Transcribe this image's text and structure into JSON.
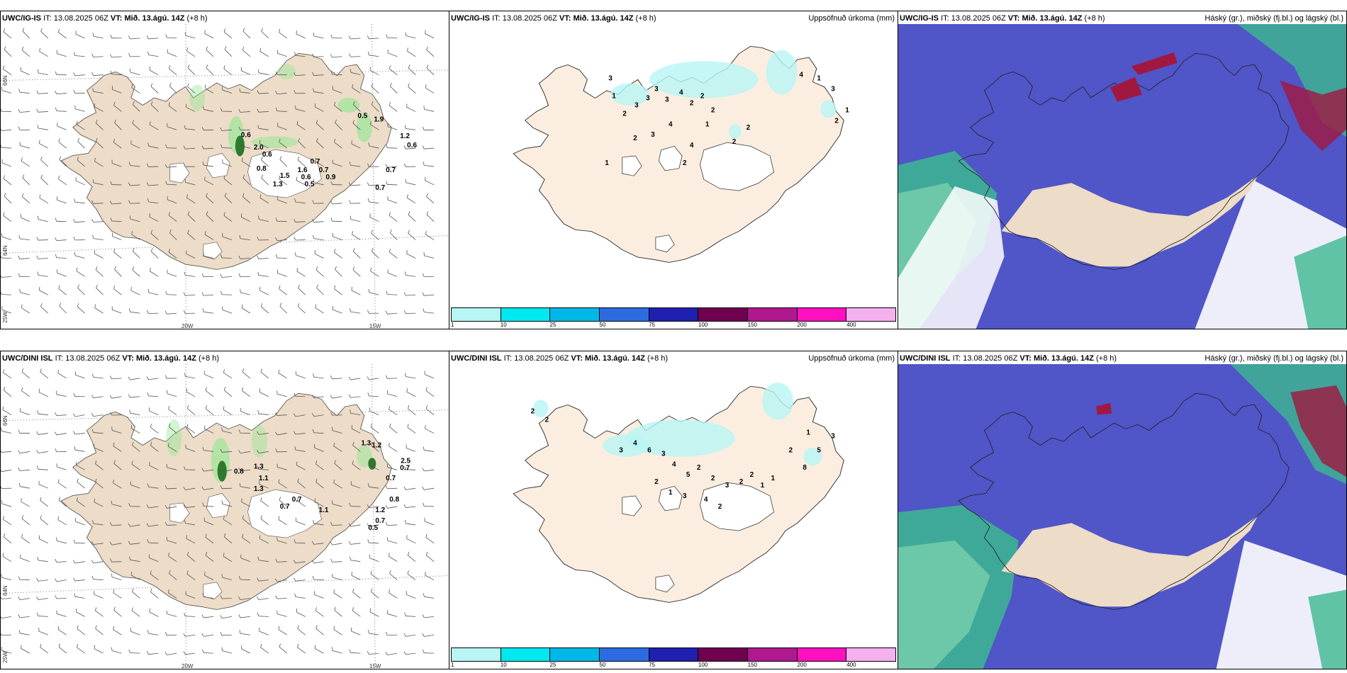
{
  "rows": [
    {
      "panels": [
        {
          "model": "UWC/IG-IS",
          "it_label": "IT:",
          "it": "13.08.2025 06Z",
          "vt_label": "VT:",
          "vt": "Mið. 13.ágú. 14Z",
          "lead": "(+8 h)",
          "right_title": "",
          "type": "wind"
        },
        {
          "model": "UWC/IG-IS",
          "it_label": "IT:",
          "it": "13.08.2025 06Z",
          "vt_label": "VT:",
          "vt": "Mið. 13.ágú. 14Z",
          "lead": "(+8 h)",
          "right_title": "Uppsöfnuð úrkoma (mm)",
          "type": "precip"
        },
        {
          "model": "UWC/IG-IS",
          "it_label": "IT:",
          "it": "13.08.2025 06Z",
          "vt_label": "VT:",
          "vt": "Mið. 13.ágú. 14Z",
          "lead": "(+8 h)",
          "right_title": "Háský (gr.), miðský (fj.bl.) og lágský (bl.)",
          "type": "cloud"
        }
      ]
    },
    {
      "panels": [
        {
          "model": "UWC/DINI ISL",
          "it_label": "IT:",
          "it": "13.08.2025 06Z",
          "vt_label": "VT:",
          "vt": "Mið. 13.ágú. 14Z",
          "lead": "(+8 h)",
          "right_title": "",
          "type": "wind"
        },
        {
          "model": "UWC/DINI ISL",
          "it_label": "IT:",
          "it": "13.08.2025 06Z",
          "vt_label": "VT:",
          "vt": "Mið. 13.ágú. 14Z",
          "lead": "(+8 h)",
          "right_title": "Uppsöfnuð úrkoma (mm)",
          "type": "precip"
        },
        {
          "model": "UWC/DINI ISL",
          "it_label": "IT:",
          "it": "13.08.2025 06Z",
          "vt_label": "VT:",
          "vt": "Mið. 13.ágú. 14Z",
          "lead": "(+8 h)",
          "right_title": "Háský (gr.), miðský (fj.bl.) og lágský (bl.)",
          "type": "cloud"
        }
      ]
    }
  ],
  "axis_labels": {
    "lat_66": "66N",
    "lat_64": "64N",
    "lon_25": "25W",
    "lon_20": "20W",
    "lon_15": "15W"
  },
  "colorbar": {
    "ticks": [
      "1",
      "10",
      "25",
      "50",
      "75",
      "100",
      "150",
      "200",
      "400"
    ],
    "colors": [
      "#b8f5f5",
      "#00e8f0",
      "#00b8e8",
      "#2c6ce0",
      "#2020b0",
      "#700050",
      "#b01890",
      "#ff10c0",
      "#f5b0f0"
    ]
  },
  "colors": {
    "land": "#ecdcc8",
    "precip_land": "#fbeee0",
    "cloud_purple": "#5055c8",
    "cloud_green": "#3cb890",
    "cloud_red": "#a01840",
    "precip_green": "#8ee88e"
  },
  "wind_labels_top": [
    "0.6",
    "2.0",
    "0.6",
    "0.8",
    "0.7",
    "1.6",
    "0.7",
    "1.5",
    "0.6",
    "0.9",
    "1.3",
    "0.5",
    "0.5",
    "1.9",
    "1.2",
    "0.6",
    "0.7",
    "0.7"
  ],
  "wind_labels_bottom": [
    "0.8",
    "1.3",
    "1.1",
    "1.3",
    "0.7",
    "0.7",
    "1.1",
    "1.3",
    "1.2",
    "2.5",
    "0.7",
    "0.7",
    "1.2",
    "0.8",
    "0.7",
    "0.5"
  ],
  "precip_labels_top": [
    "3",
    "1",
    "2",
    "3",
    "3",
    "3",
    "3",
    "4",
    "2",
    "2",
    "2",
    "1",
    "4",
    "3",
    "4",
    "2",
    "2",
    "1",
    "2",
    "2",
    "4",
    "1",
    "3",
    "2",
    "1"
  ],
  "precip_labels_bottom": [
    "2",
    "2",
    "3",
    "4",
    "6",
    "3",
    "4",
    "5",
    "2",
    "2",
    "3",
    "2",
    "2",
    "1",
    "1",
    "8",
    "5",
    "3",
    "1",
    "2",
    "2",
    "1",
    "3",
    "4",
    "2"
  ]
}
